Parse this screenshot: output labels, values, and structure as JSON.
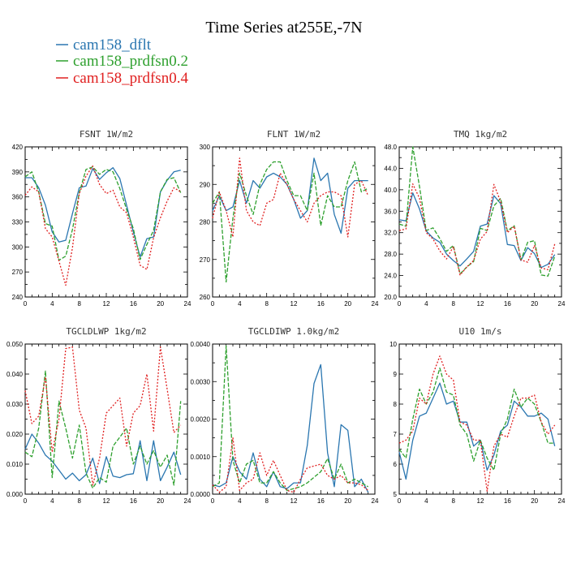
{
  "figure": {
    "title": "Time Series at255E,-7N"
  },
  "colors": {
    "cam158_dflt": "#2a76b0",
    "cam158_prdfsn0.2": "#2ea02e",
    "cam158_prdfsn0.4": "#e02020"
  },
  "chart_data": [
    {
      "type": "line",
      "title": "FSNT",
      "units": "1W/m2",
      "xlim": [
        0,
        24
      ],
      "ylim": [
        240,
        420
      ],
      "xticks": [
        0,
        4,
        8,
        12,
        16,
        20,
        24
      ],
      "yticks": [
        240,
        270,
        300,
        330,
        360,
        390,
        420
      ],
      "yticklabels": [
        "240",
        "270",
        "300",
        "330",
        "360",
        "390",
        "420"
      ],
      "x": [
        0,
        1,
        2,
        3,
        4,
        5,
        6,
        7,
        8,
        9,
        10,
        11,
        12,
        13,
        14,
        15,
        16,
        17,
        18,
        19,
        20,
        21,
        22,
        23
      ],
      "series": [
        {
          "name": "cam158_dflt",
          "values": [
            383,
            383,
            371,
            350,
            318,
            306,
            308,
            340,
            371,
            373,
            394,
            381,
            389,
            395,
            382,
            350,
            318,
            288,
            310,
            312,
            366,
            380,
            390,
            392
          ]
        },
        {
          "name": "cam158_prdfsn0.2",
          "values": [
            384,
            390,
            366,
            328,
            325,
            284,
            289,
            321,
            365,
            393,
            396,
            387,
            393,
            390,
            370,
            345,
            322,
            285,
            303,
            320,
            366,
            381,
            383,
            365
          ]
        },
        {
          "name": "cam158_prdfsn0.4",
          "values": [
            362,
            372,
            366,
            322,
            312,
            283,
            254,
            299,
            364,
            385,
            397,
            375,
            364,
            368,
            348,
            341,
            312,
            278,
            273,
            311,
            335,
            355,
            371,
            366
          ]
        }
      ]
    },
    {
      "type": "line",
      "title": "FLNT",
      "units": "1W/m2",
      "xlim": [
        0,
        24
      ],
      "ylim": [
        260,
        300
      ],
      "xticks": [
        0,
        4,
        8,
        12,
        16,
        20,
        24
      ],
      "yticks": [
        260,
        270,
        280,
        290,
        300
      ],
      "yticklabels": [
        "260",
        "270",
        "280",
        "290",
        "300"
      ],
      "x": [
        0,
        1,
        2,
        3,
        4,
        5,
        6,
        7,
        8,
        9,
        10,
        11,
        12,
        13,
        14,
        15,
        16,
        17,
        18,
        19,
        20,
        21,
        22,
        23
      ],
      "series": [
        {
          "name": "cam158_dflt",
          "values": [
            283,
            287,
            283,
            284,
            291,
            285,
            291,
            289,
            292,
            293,
            292,
            290,
            286,
            281,
            283,
            297,
            291,
            293,
            282,
            277,
            289,
            291,
            291,
            291
          ]
        },
        {
          "name": "cam158_prdfsn0.2",
          "values": [
            285,
            288,
            264,
            281,
            293,
            287,
            282,
            290,
            294,
            296,
            296,
            291,
            287,
            287,
            283,
            293,
            279,
            287,
            284,
            284,
            291,
            296,
            288,
            289
          ]
        },
        {
          "name": "cam158_prdfsn0.4",
          "values": [
            281,
            288,
            283,
            276,
            297,
            283,
            280,
            279,
            285,
            286,
            293,
            290,
            286,
            283,
            280,
            285,
            287,
            288,
            288,
            287,
            276,
            290,
            291,
            287
          ]
        }
      ]
    },
    {
      "type": "line",
      "title": "TMQ",
      "units": "1kg/m2",
      "xlim": [
        0,
        24
      ],
      "ylim": [
        20,
        48
      ],
      "xticks": [
        0,
        4,
        8,
        12,
        16,
        20,
        24
      ],
      "yticks": [
        20,
        24,
        28,
        32,
        36,
        40,
        44,
        48
      ],
      "yticklabels": [
        "20.0",
        "24.0",
        "28.0",
        "32.0",
        "36.0",
        "40.0",
        "44.0",
        "48.0"
      ],
      "x": [
        0,
        1,
        2,
        3,
        4,
        5,
        6,
        7,
        8,
        9,
        10,
        11,
        12,
        13,
        14,
        15,
        16,
        17,
        18,
        19,
        20,
        21,
        22,
        23
      ],
      "series": [
        {
          "name": "cam158_dflt",
          "values": [
            34.4,
            34.2,
            39.4,
            36.4,
            32.3,
            31.0,
            30.2,
            28.0,
            26.8,
            25.8,
            27.1,
            28.5,
            33.2,
            33.6,
            38.9,
            37.4,
            29.8,
            29.6,
            26.8,
            29.2,
            28.1,
            25.5,
            26.1,
            27.9
          ]
        },
        {
          "name": "cam158_prdfsn0.2",
          "values": [
            33.6,
            33.2,
            48.0,
            40.6,
            32.4,
            32.9,
            30.9,
            28.5,
            29.6,
            24.3,
            25.6,
            26.6,
            32.8,
            32.4,
            37.0,
            38.4,
            32.3,
            33.3,
            26.9,
            30.2,
            30.5,
            24.1,
            23.9,
            27.6
          ]
        },
        {
          "name": "cam158_prdfsn0.4",
          "values": [
            32.4,
            32.7,
            41.1,
            38.4,
            32.0,
            30.8,
            28.6,
            27.1,
            29.4,
            24.1,
            25.6,
            26.8,
            30.8,
            32.2,
            41.0,
            37.8,
            32.0,
            33.2,
            26.9,
            26.5,
            29.6,
            25.4,
            25.1,
            29.9
          ]
        }
      ]
    },
    {
      "type": "line",
      "title": "TGCLDLWP",
      "units": "1kg/m2",
      "xlim": [
        0,
        24
      ],
      "ylim": [
        0,
        0.05
      ],
      "xticks": [
        0,
        4,
        8,
        12,
        16,
        20,
        24
      ],
      "yticks": [
        0,
        0.01,
        0.02,
        0.03,
        0.04,
        0.05
      ],
      "yticklabels": [
        "0.000",
        "0.010",
        "0.020",
        "0.030",
        "0.040",
        "0.050"
      ],
      "x": [
        0,
        1,
        2,
        3,
        4,
        5,
        6,
        7,
        8,
        9,
        10,
        11,
        12,
        13,
        14,
        15,
        16,
        17,
        18,
        19,
        20,
        21,
        22,
        23
      ],
      "series": [
        {
          "name": "cam158_dflt",
          "values": [
            0.015,
            0.02,
            0.017,
            0.013,
            0.011,
            0.008,
            0.005,
            0.007,
            0.0045,
            0.0065,
            0.012,
            0.0035,
            0.0125,
            0.006,
            0.0055,
            0.0065,
            0.0068,
            0.0178,
            0.0045,
            0.0178,
            0.0045,
            0.009,
            0.014,
            0.0065
          ]
        },
        {
          "name": "cam158_prdfsn0.2",
          "values": [
            0.014,
            0.0125,
            0.022,
            0.041,
            0.0055,
            0.031,
            0.022,
            0.012,
            0.023,
            0.007,
            0.002,
            0.0055,
            0.004,
            0.016,
            0.019,
            0.022,
            0.01,
            0.016,
            0.01,
            0.0145,
            0.009,
            0.013,
            0.003,
            0.031
          ]
        },
        {
          "name": "cam158_prdfsn0.4",
          "values": [
            0.0345,
            0.0235,
            0.026,
            0.039,
            0.014,
            0.025,
            0.0485,
            0.049,
            0.028,
            0.022,
            0.003,
            0.012,
            0.027,
            0.0295,
            0.032,
            0.016,
            0.027,
            0.0295,
            0.04,
            0.021,
            0.049,
            0.035,
            0.0205,
            0.023
          ]
        }
      ]
    },
    {
      "type": "line",
      "title": "TGCLDIWP",
      "units": "1.0kg/m2",
      "xlim": [
        0,
        24
      ],
      "ylim": [
        0,
        0.004
      ],
      "xticks": [
        0,
        4,
        8,
        12,
        16,
        20,
        24
      ],
      "yticks": [
        0,
        0.001,
        0.002,
        0.003,
        0.004
      ],
      "yticklabels": [
        "0.0000",
        "0.0010",
        "0.0020",
        "0.0030",
        "0.0040"
      ],
      "x": [
        0,
        1,
        2,
        3,
        4,
        5,
        6,
        7,
        8,
        9,
        10,
        11,
        12,
        13,
        14,
        15,
        16,
        17,
        18,
        19,
        20,
        21,
        22,
        23
      ],
      "series": [
        {
          "name": "cam158_dflt",
          "values": [
            0.00025,
            0.0002,
            0.0003,
            0.001,
            0.0006,
            0.0004,
            0.0011,
            0.0004,
            0.0002,
            0.0006,
            0.0002,
            0.00015,
            0.0003,
            0.0003,
            0.0013,
            0.00295,
            0.00345,
            0.0011,
            0.0002,
            0.00185,
            0.0017,
            0.0002,
            0.0004,
            5e-05
          ]
        },
        {
          "name": "cam158_prdfsn0.2",
          "values": [
            0.0002,
            0.0003,
            0.00395,
            0.0009,
            0.0003,
            0.0008,
            0.0009,
            0.0003,
            0.0003,
            0.0006,
            0.0003,
            0.0001,
            0.00015,
            0.0002,
            0.0003,
            0.00045,
            0.0006,
            0.00095,
            0.0004,
            0.0008,
            0.0003,
            0.0004,
            0.0003,
            0.0002
          ]
        },
        {
          "name": "cam158_prdfsn0.4",
          "values": [
            0.00025,
            5e-05,
            0.0002,
            0.0015,
            0.0001,
            0.0003,
            0.0004,
            0.0011,
            0.0005,
            0.0009,
            0.0005,
            0.0001,
            5e-05,
            0.0004,
            0.0007,
            0.00075,
            0.0008,
            0.0005,
            0.0004,
            0.0005,
            0.0003,
            0.0003,
            0.00025,
            0.0001
          ]
        }
      ]
    },
    {
      "type": "line",
      "title": "U10",
      "units": "1m/s",
      "xlim": [
        0,
        24
      ],
      "ylim": [
        5,
        10
      ],
      "xticks": [
        0,
        4,
        8,
        12,
        16,
        20,
        24
      ],
      "yticks": [
        5,
        6,
        7,
        8,
        9,
        10
      ],
      "yticklabels": [
        "5",
        "6",
        "7",
        "8",
        "9",
        "10"
      ],
      "x": [
        0,
        1,
        2,
        3,
        4,
        5,
        6,
        7,
        8,
        9,
        10,
        11,
        12,
        13,
        14,
        15,
        16,
        17,
        18,
        19,
        20,
        21,
        22,
        23
      ],
      "series": [
        {
          "name": "cam158_dflt",
          "values": [
            6.4,
            5.5,
            6.8,
            7.6,
            7.7,
            8.2,
            8.7,
            8.0,
            8.1,
            7.4,
            7.4,
            6.6,
            6.8,
            5.8,
            6.3,
            7.1,
            7.3,
            8.1,
            7.9,
            7.6,
            7.6,
            7.7,
            7.5,
            6.6
          ]
        },
        {
          "name": "cam158_prdfsn0.2",
          "values": [
            6.5,
            6.2,
            7.5,
            8.5,
            8.0,
            8.4,
            9.2,
            8.4,
            8.3,
            7.3,
            7.0,
            6.1,
            6.8,
            6.2,
            5.8,
            7.0,
            7.5,
            8.5,
            7.9,
            8.2,
            8.0,
            7.4,
            6.7,
            6.7
          ]
        },
        {
          "name": "cam158_prdfsn0.4",
          "values": [
            6.7,
            6.8,
            7.1,
            8.2,
            8.0,
            9.0,
            9.6,
            9.0,
            8.8,
            7.4,
            7.3,
            6.8,
            6.8,
            5.1,
            6.6,
            7.0,
            6.9,
            7.6,
            8.2,
            8.2,
            8.3,
            7.4,
            7.0,
            7.3
          ]
        }
      ]
    }
  ]
}
